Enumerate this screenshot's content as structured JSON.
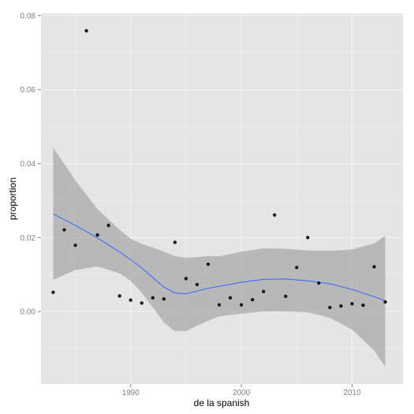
{
  "chart_data": {
    "type": "scatter",
    "title": "",
    "xlabel": "de la spanish",
    "ylabel": "proportion",
    "xlim": [
      1981.9,
      2014.6
    ],
    "ylim": [
      -0.0196,
      0.0806
    ],
    "x_ticks": [
      1990,
      2000,
      2010
    ],
    "y_ticks": [
      0.0,
      0.02,
      0.04,
      0.06,
      0.08
    ],
    "y_tick_labels": [
      "0.00",
      "0.02",
      "0.04",
      "0.06",
      "0.08"
    ],
    "grid": true,
    "legend": "none",
    "points": [
      {
        "x": 1983,
        "y": 0.0052
      },
      {
        "x": 1984,
        "y": 0.0221
      },
      {
        "x": 1985,
        "y": 0.0179
      },
      {
        "x": 1986,
        "y": 0.0759
      },
      {
        "x": 1987,
        "y": 0.0207
      },
      {
        "x": 1988,
        "y": 0.0233
      },
      {
        "x": 1989,
        "y": 0.0042
      },
      {
        "x": 1990,
        "y": 0.0031
      },
      {
        "x": 1991,
        "y": 0.0023
      },
      {
        "x": 1992,
        "y": 0.0037
      },
      {
        "x": 1993,
        "y": 0.0034
      },
      {
        "x": 1994,
        "y": 0.0187
      },
      {
        "x": 1995,
        "y": 0.0089
      },
      {
        "x": 1996,
        "y": 0.0073
      },
      {
        "x": 1997,
        "y": 0.0128
      },
      {
        "x": 1998,
        "y": 0.0018
      },
      {
        "x": 1999,
        "y": 0.0037
      },
      {
        "x": 2000,
        "y": 0.0018
      },
      {
        "x": 2001,
        "y": 0.0032
      },
      {
        "x": 2002,
        "y": 0.0054
      },
      {
        "x": 2003,
        "y": 0.0261
      },
      {
        "x": 2004,
        "y": 0.0041
      },
      {
        "x": 2005,
        "y": 0.0119
      },
      {
        "x": 2006,
        "y": 0.02
      },
      {
        "x": 2007,
        "y": 0.0077
      },
      {
        "x": 2008,
        "y": 0.0011
      },
      {
        "x": 2009,
        "y": 0.0015
      },
      {
        "x": 2010,
        "y": 0.0021
      },
      {
        "x": 2011,
        "y": 0.0017
      },
      {
        "x": 2012,
        "y": 0.0121
      },
      {
        "x": 2013,
        "y": 0.0026
      }
    ],
    "smooth": {
      "x": [
        1983,
        1985,
        1987,
        1989,
        1990,
        1991,
        1992,
        1993,
        1994,
        1995,
        1996,
        1997,
        1998,
        2000,
        2002,
        2004,
        2006,
        2008,
        2010,
        2012,
        2013
      ],
      "y": [
        0.0264,
        0.0233,
        0.0199,
        0.0161,
        0.014,
        0.0118,
        0.0092,
        0.0066,
        0.005,
        0.0048,
        0.0055,
        0.0063,
        0.0068,
        0.0079,
        0.0087,
        0.0088,
        0.0083,
        0.0075,
        0.006,
        0.004,
        0.0029
      ],
      "lower": [
        0.0086,
        0.0112,
        0.0122,
        0.0103,
        0.0083,
        0.0051,
        0.0011,
        -0.003,
        -0.0053,
        -0.0053,
        -0.0038,
        -0.0025,
        -0.0013,
        -0.0006,
        0.0,
        0.0,
        -0.0002,
        -0.0017,
        -0.0049,
        -0.0105,
        -0.015
      ],
      "upper": [
        0.0443,
        0.0355,
        0.0277,
        0.0221,
        0.0197,
        0.0183,
        0.0173,
        0.0162,
        0.015,
        0.0145,
        0.0147,
        0.015,
        0.0149,
        0.0162,
        0.0171,
        0.017,
        0.0165,
        0.0164,
        0.0168,
        0.0184,
        0.0205
      ]
    },
    "colors": {
      "panel": "#E5E5E5",
      "ribbon": "#999999",
      "line": "#3366FF",
      "point": "#1A1A1A",
      "grid_major": "#F2F2F2",
      "grid_minor": "#F2F2F2"
    }
  }
}
